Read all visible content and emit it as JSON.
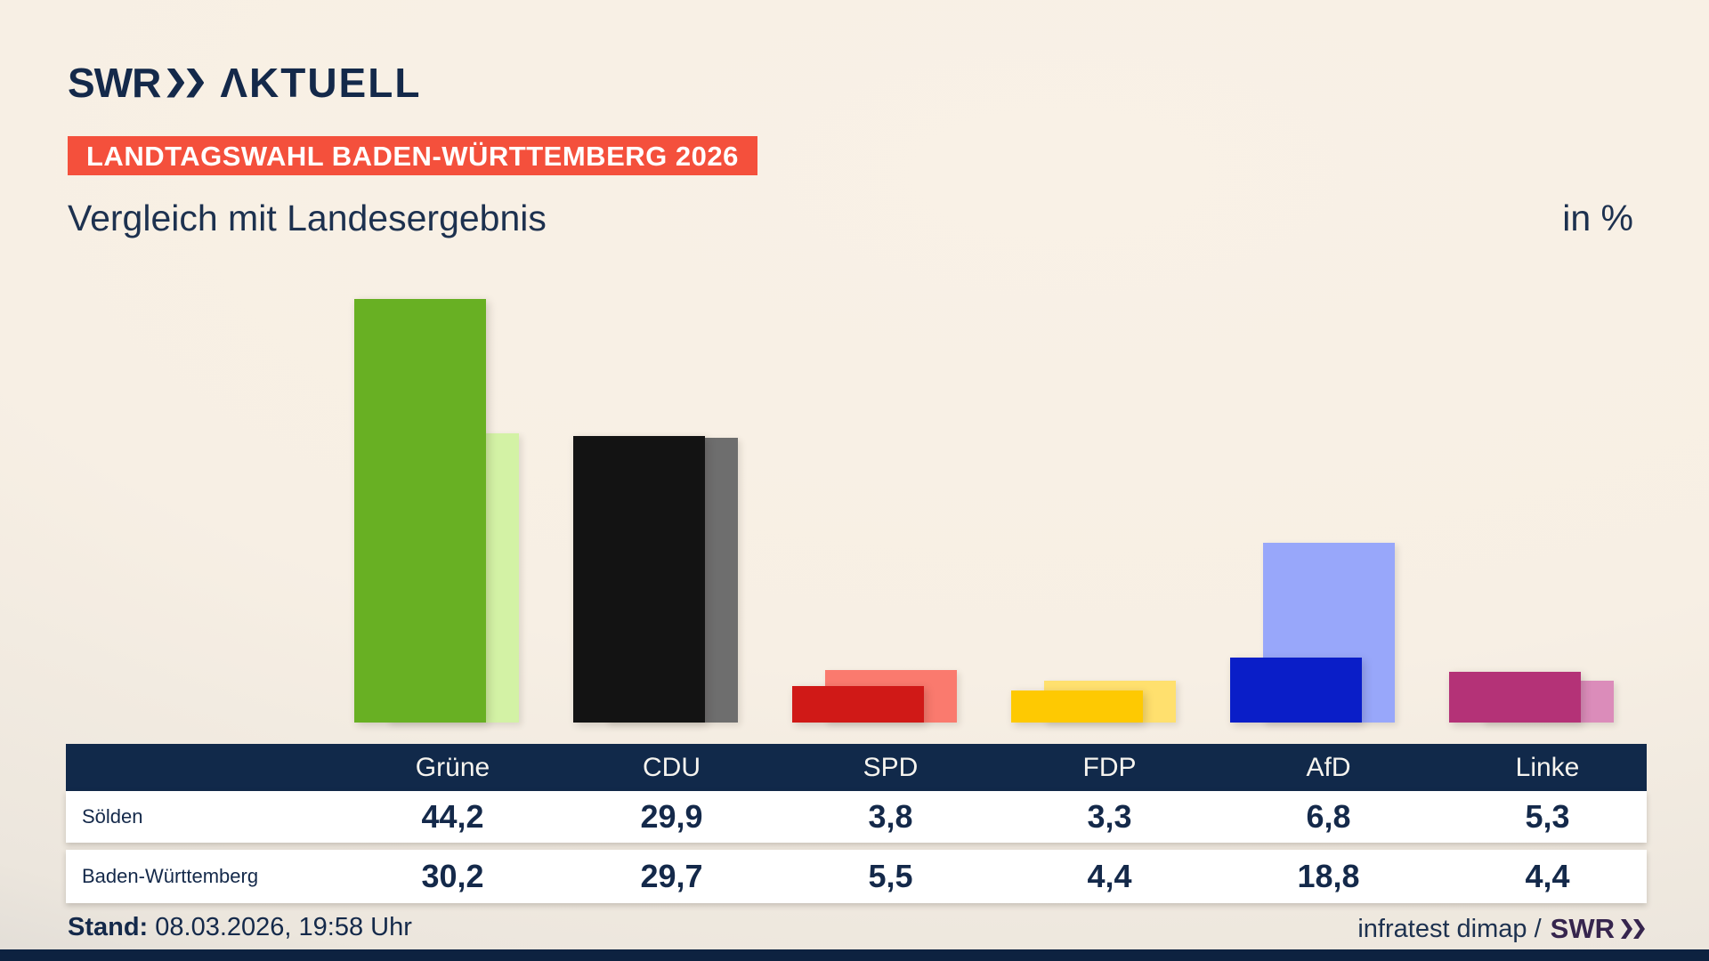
{
  "header": {
    "logo_text": "SWR",
    "logo_wordmark": "ΛKTUELL",
    "badge_text": "LANDTAGSWAHL BADEN-WÜRTTEMBERG 2026",
    "title": "Vergleich mit Landesergebnis",
    "unit_label": "in %"
  },
  "chart_data": {
    "type": "bar",
    "title": "Vergleich mit Landesergebnis",
    "unit": "%",
    "grid": false,
    "legend_position": "table-below-chart",
    "ylim": [
      0,
      45
    ],
    "categories": [
      "Grüne",
      "CDU",
      "SPD",
      "FDP",
      "AfD",
      "Linke"
    ],
    "series": [
      {
        "name": "Sölden",
        "values": [
          44.2,
          29.9,
          3.8,
          3.3,
          6.8,
          5.3
        ],
        "labels": [
          "44,2",
          "29,9",
          "3,8",
          "3,3",
          "6,8",
          "5,3"
        ],
        "color_key": "front"
      },
      {
        "name": "Baden-Württemberg",
        "values": [
          30.2,
          29.7,
          5.5,
          4.4,
          18.8,
          4.4
        ],
        "labels": [
          "30,2",
          "29,7",
          "5,5",
          "4,4",
          "18,8",
          "4,4"
        ],
        "color_key": "back"
      }
    ],
    "party_colors": [
      {
        "party": "Grüne",
        "front": "#68b023",
        "back": "#d3f2a5"
      },
      {
        "party": "CDU",
        "front": "#131313",
        "back": "#6e6e6e"
      },
      {
        "party": "SPD",
        "front": "#d01917",
        "back": "#fa7a6e"
      },
      {
        "party": "FDP",
        "front": "#fec902",
        "back": "#ffe06e"
      },
      {
        "party": "AfD",
        "front": "#0a1ec8",
        "back": "#98a7fa"
      },
      {
        "party": "Linke",
        "front": "#b43277",
        "back": "#db8cba"
      }
    ]
  },
  "footer": {
    "stand_label": "Stand:",
    "stand_value": " 08.03.2026, 19:58 Uhr",
    "source_text": "infratest dimap / ",
    "source_logo": "SWR"
  },
  "colors": {
    "navy": "#14294a",
    "badge_red": "#f4503c",
    "table_header_bg": "#11294a",
    "background_cream": "#f7efe4"
  }
}
